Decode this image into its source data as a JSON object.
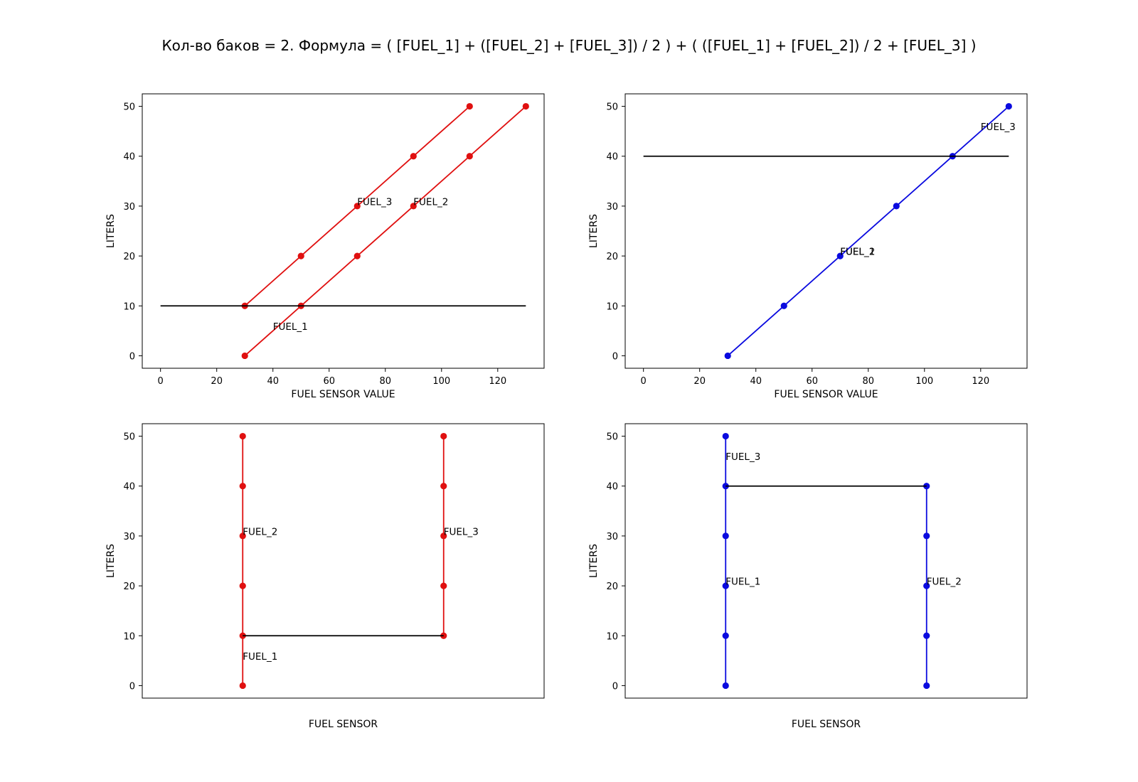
{
  "figure": {
    "title": "Кол-во баков = 2. Формула = ( [FUEL_1] + ([FUEL_2] + [FUEL_3]) / 2 )  +  ( ([FUEL_1] + [FUEL_2]) / 2 + [FUEL_3] )"
  },
  "colors": {
    "red": "#e01010",
    "blue": "#0a0adf",
    "reference": "#000000"
  },
  "chart_data": [
    {
      "type": "line",
      "position": "top-left",
      "xlabel": "FUEL SENSOR VALUE",
      "ylabel": "LITERS",
      "xlim": [
        -6.5,
        136.5
      ],
      "ylim": [
        -2.5,
        52.5
      ],
      "xticks": [
        0,
        20,
        40,
        60,
        80,
        100,
        120
      ],
      "yticks": [
        0,
        10,
        20,
        30,
        40,
        50
      ],
      "grid": false,
      "series": [
        {
          "color": "red",
          "marker": true,
          "points": [
            [
              30,
              0
            ],
            [
              50,
              10
            ],
            [
              70,
              20
            ],
            [
              90,
              30
            ],
            [
              110,
              40
            ],
            [
              130,
              50
            ]
          ]
        },
        {
          "color": "red",
          "marker": true,
          "points": [
            [
              30,
              10
            ],
            [
              50,
              20
            ],
            [
              70,
              30
            ],
            [
              90,
              40
            ],
            [
              110,
              50
            ]
          ]
        },
        {
          "color": "reference",
          "marker": false,
          "points": [
            [
              0,
              10
            ],
            [
              130,
              10
            ]
          ]
        }
      ],
      "annotations": [
        {
          "text": "FUEL_1",
          "x": 40,
          "y": 5.2
        },
        {
          "text": "FUEL_2",
          "x": 90,
          "y": 30.2
        },
        {
          "text": "FUEL_3",
          "x": 70,
          "y": 30.2
        }
      ]
    },
    {
      "type": "line",
      "position": "top-right",
      "xlabel": "FUEL SENSOR VALUE",
      "ylabel": "LITERS",
      "xlim": [
        -6.5,
        136.5
      ],
      "ylim": [
        -2.5,
        52.5
      ],
      "xticks": [
        0,
        20,
        40,
        60,
        80,
        100,
        120
      ],
      "yticks": [
        0,
        10,
        20,
        30,
        40,
        50
      ],
      "grid": false,
      "series": [
        {
          "color": "blue",
          "marker": true,
          "points": [
            [
              30,
              0
            ],
            [
              50,
              10
            ],
            [
              70,
              20
            ],
            [
              90,
              30
            ],
            [
              110,
              40
            ],
            [
              130,
              50
            ]
          ]
        },
        {
          "color": "reference",
          "marker": false,
          "points": [
            [
              0,
              40
            ],
            [
              130,
              40
            ]
          ]
        }
      ],
      "annotations": [
        {
          "text": "FUEL_1",
          "x": 70,
          "y": 20.2
        },
        {
          "text": "FUEL_2",
          "x": 70,
          "y": 20.2
        },
        {
          "text": "FUEL_3",
          "x": 120,
          "y": 45.2
        }
      ]
    },
    {
      "type": "line",
      "position": "bottom-left",
      "xlabel": "FUEL SENSOR",
      "ylabel": "LITERS",
      "xlim": [
        -0.5,
        1.5
      ],
      "ylim": [
        -2.5,
        52.5
      ],
      "xticks": [],
      "yticks": [
        0,
        10,
        20,
        30,
        40,
        50
      ],
      "grid": false,
      "series": [
        {
          "color": "red",
          "marker": true,
          "points": [
            [
              0,
              0
            ],
            [
              0,
              10
            ],
            [
              0,
              20
            ],
            [
              0,
              30
            ],
            [
              0,
              40
            ],
            [
              0,
              50
            ]
          ]
        },
        {
          "color": "red",
          "marker": true,
          "points": [
            [
              1,
              10
            ],
            [
              1,
              20
            ],
            [
              1,
              30
            ],
            [
              1,
              40
            ],
            [
              1,
              50
            ]
          ]
        },
        {
          "color": "reference",
          "marker": false,
          "points": [
            [
              0,
              10
            ],
            [
              1,
              10
            ]
          ]
        }
      ],
      "annotations": [
        {
          "text": "FUEL_1",
          "x": 0,
          "y": 5.2
        },
        {
          "text": "FUEL_2",
          "x": 0,
          "y": 30.2
        },
        {
          "text": "FUEL_3",
          "x": 1,
          "y": 30.2
        }
      ]
    },
    {
      "type": "line",
      "position": "bottom-right",
      "xlabel": "FUEL SENSOR",
      "ylabel": "LITERS",
      "xlim": [
        -0.5,
        1.5
      ],
      "ylim": [
        -2.5,
        52.5
      ],
      "xticks": [],
      "yticks": [
        0,
        10,
        20,
        30,
        40,
        50
      ],
      "grid": false,
      "series": [
        {
          "color": "blue",
          "marker": true,
          "points": [
            [
              0,
              0
            ],
            [
              0,
              10
            ],
            [
              0,
              20
            ],
            [
              0,
              30
            ],
            [
              0,
              40
            ],
            [
              0,
              50
            ]
          ]
        },
        {
          "color": "blue",
          "marker": true,
          "points": [
            [
              1,
              0
            ],
            [
              1,
              10
            ],
            [
              1,
              20
            ],
            [
              1,
              30
            ],
            [
              1,
              40
            ]
          ]
        },
        {
          "color": "reference",
          "marker": false,
          "points": [
            [
              0,
              40
            ],
            [
              1,
              40
            ]
          ]
        }
      ],
      "annotations": [
        {
          "text": "FUEL_1",
          "x": 0,
          "y": 20.2
        },
        {
          "text": "FUEL_2",
          "x": 1,
          "y": 20.2
        },
        {
          "text": "FUEL_3",
          "x": 0,
          "y": 45.2
        }
      ]
    }
  ]
}
